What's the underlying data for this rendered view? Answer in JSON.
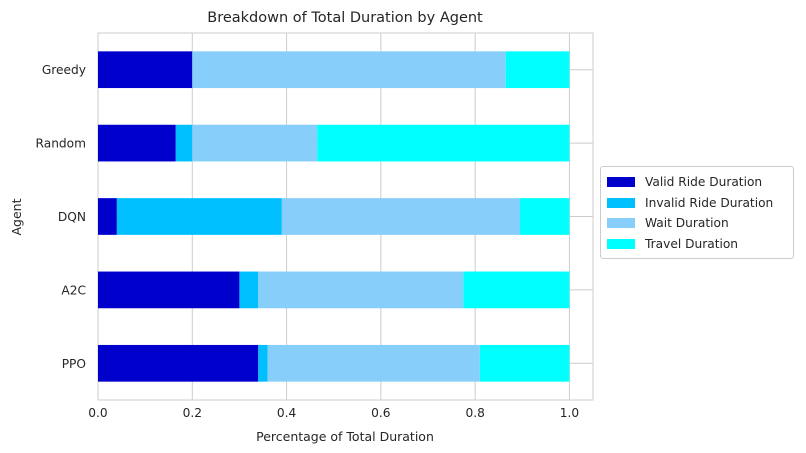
{
  "chart_data": {
    "type": "bar",
    "orientation": "horizontal",
    "stacked": true,
    "title": "Breakdown of Total Duration by Agent",
    "xlabel": "Percentage of Total Duration",
    "ylabel": "Agent",
    "xlim": [
      0.0,
      1.05
    ],
    "xticks": [
      "0.0",
      "0.2",
      "0.4",
      "0.6",
      "0.8",
      "1.0"
    ],
    "grid": true,
    "legend_position": "center-right-outside",
    "categories": [
      "PPO",
      "A2C",
      "DQN",
      "Random",
      "Greedy"
    ],
    "series": [
      {
        "name": "Valid Ride Duration",
        "color": "#0000cd",
        "values": [
          0.34,
          0.3,
          0.04,
          0.165,
          0.2
        ]
      },
      {
        "name": "Invalid Ride Duration",
        "color": "#00bfff",
        "values": [
          0.02,
          0.04,
          0.35,
          0.035,
          0.0
        ]
      },
      {
        "name": "Wait Duration",
        "color": "#87cefa",
        "values": [
          0.45,
          0.435,
          0.505,
          0.265,
          0.665
        ]
      },
      {
        "name": "Travel Duration",
        "color": "#00ffff",
        "values": [
          0.19,
          0.225,
          0.105,
          0.535,
          0.135
        ]
      }
    ]
  }
}
